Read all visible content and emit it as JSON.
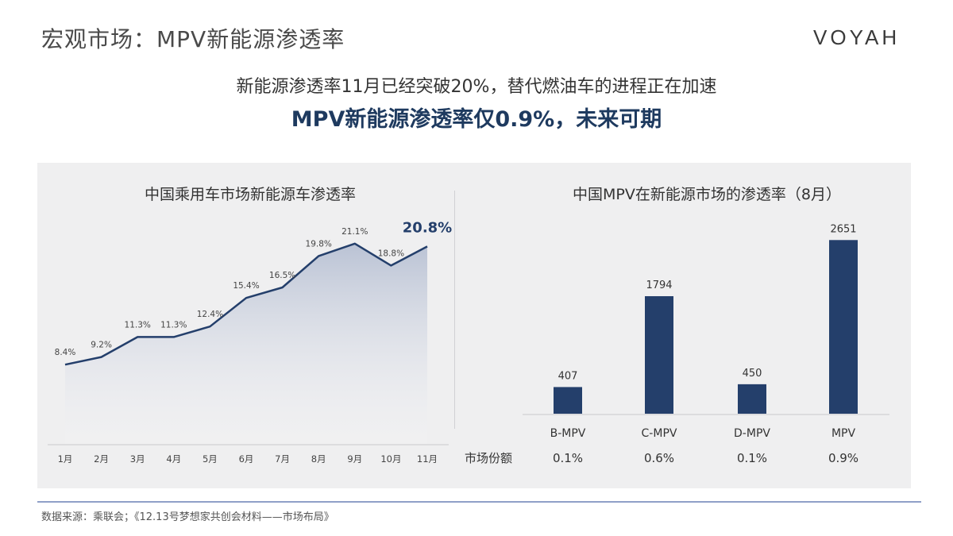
{
  "page_title": "宏观市场：MPV新能源渗透率",
  "brand": "VOYAH",
  "subtitle": "新能源渗透率11月已经突破20%，替代燃油车的进程正在加速",
  "headline": "MPV新能源渗透率仅0.9%，未来可期",
  "source_note": "数据来源：乘联会；《12.13号梦想家共创会材料——市场布局》",
  "colors": {
    "navy": "#243f6b",
    "headline": "#1e3a5f",
    "panel": "#efeff0"
  },
  "chart_data": [
    {
      "type": "area",
      "title": "中国乘用车市场新能源车渗透率",
      "categories": [
        "1月",
        "2月",
        "3月",
        "4月",
        "5月",
        "6月",
        "7月",
        "8月",
        "9月",
        "10月",
        "11月"
      ],
      "values": [
        8.4,
        9.2,
        11.3,
        11.3,
        12.4,
        15.4,
        16.5,
        19.8,
        21.1,
        18.8,
        20.8
      ],
      "labels": [
        "8.4%",
        "9.2%",
        "11.3%",
        "11.3%",
        "12.4%",
        "15.4%",
        "16.5%",
        "19.8%",
        "21.1%",
        "18.8%",
        "20.8%"
      ],
      "highlight_index": 10,
      "ylim": [
        0,
        25
      ],
      "grid": false
    },
    {
      "type": "bar",
      "title": "中国MPV在新能源市场的渗透率（8月）",
      "categories": [
        "B-MPV",
        "C-MPV",
        "D-MPV",
        "MPV"
      ],
      "values": [
        407,
        1794,
        450,
        2651
      ],
      "share_label": "市场份额",
      "shares": [
        "0.1%",
        "0.6%",
        "0.1%",
        "0.9%"
      ],
      "ylim": [
        0,
        2800
      ],
      "grid": false
    }
  ]
}
